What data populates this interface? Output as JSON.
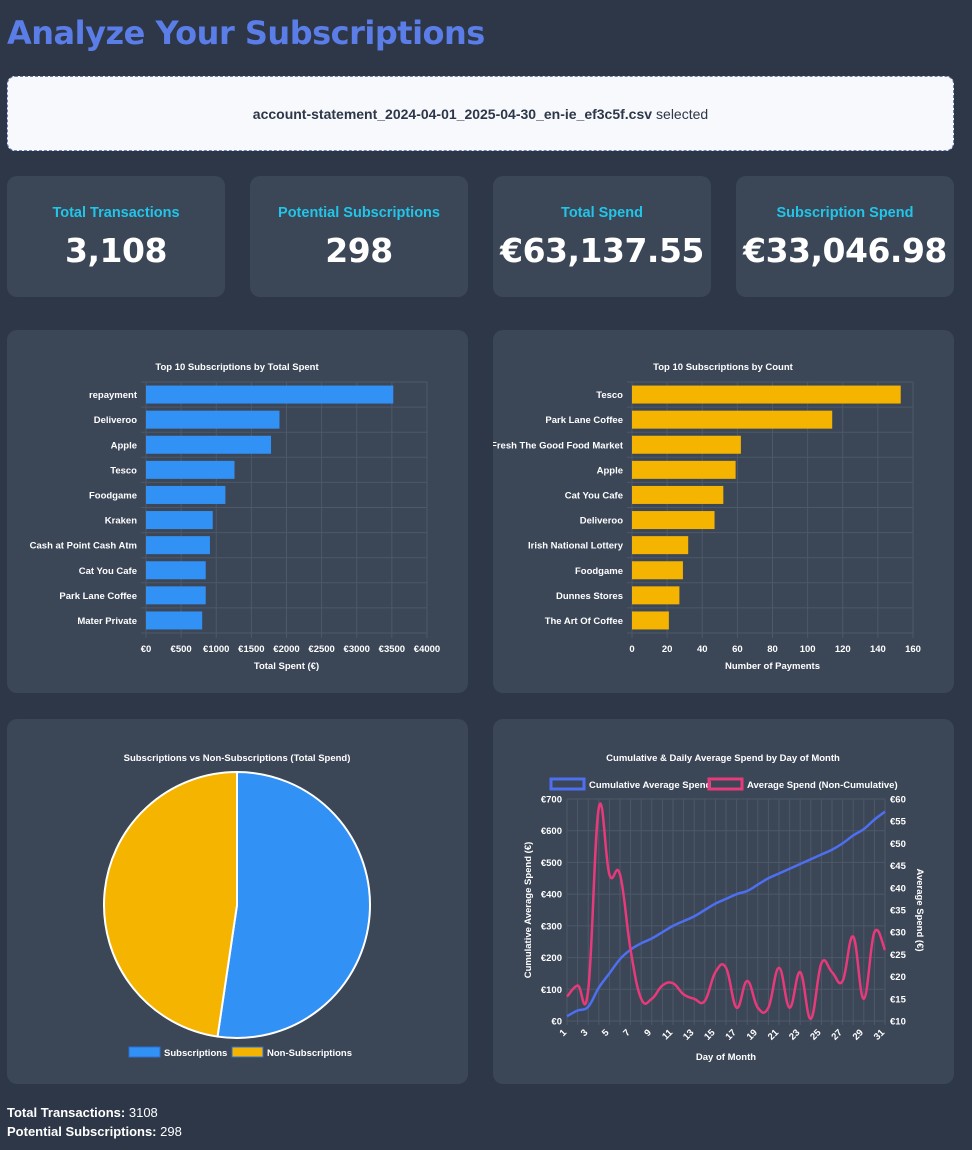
{
  "page_title": "Analyze Your Subscriptions",
  "file": {
    "name": "account-statement_2024-04-01_2025-04-30_en-ie_ef3c5f.csv",
    "status": "selected"
  },
  "stats": [
    {
      "label": "Total Transactions",
      "value": "3,108"
    },
    {
      "label": "Potential Subscriptions",
      "value": "298"
    },
    {
      "label": "Total Spend",
      "value": "€63,137.55"
    },
    {
      "label": "Subscription Spend",
      "value": "€33,046.98"
    }
  ],
  "colors": {
    "blue": "#3291f5",
    "yellow": "#f5b400",
    "pink": "#e83a7a",
    "line_blue": "#4d6ff0"
  },
  "chart_data": [
    {
      "type": "bar",
      "orientation": "horizontal",
      "title": "Top 10 Subscriptions by Total Spent",
      "categories": [
        "repayment",
        "Deliveroo",
        "Apple",
        "Tesco",
        "Foodgame",
        "Kraken",
        "Cash at Point Cash Atm",
        "Cat You Cafe",
        "Park Lane Coffee",
        "Mater Private"
      ],
      "values": [
        3520,
        1900,
        1780,
        1260,
        1130,
        950,
        910,
        850,
        850,
        800
      ],
      "xlabel": "Total Spent (€)",
      "xlim": [
        0,
        4000
      ],
      "ticks": [
        "€0",
        "€500",
        "€1000",
        "€1500",
        "€2000",
        "€2500",
        "€3000",
        "€3500",
        "€4000"
      ],
      "grid": true
    },
    {
      "type": "bar",
      "orientation": "horizontal",
      "title": "Top 10 Subscriptions by Count",
      "categories": [
        "Tesco",
        "Park Lane Coffee",
        "Fresh The Good Food Market",
        "Apple",
        "Cat You Cafe",
        "Deliveroo",
        "Irish National Lottery",
        "Foodgame",
        "Dunnes Stores",
        "The Art Of Coffee"
      ],
      "values": [
        153,
        114,
        62,
        59,
        52,
        47,
        32,
        29,
        27,
        21
      ],
      "xlabel": "Number of Payments",
      "xlim": [
        0,
        160
      ],
      "ticks": [
        "0",
        "20",
        "40",
        "60",
        "80",
        "100",
        "120",
        "140",
        "160"
      ],
      "grid": true
    },
    {
      "type": "pie",
      "title": "Subscriptions vs Non-Subscriptions (Total Spend)",
      "labels": [
        "Subscriptions",
        "Non-Subscriptions"
      ],
      "values": [
        33046.98,
        30090.57
      ],
      "legend": "bottom"
    },
    {
      "type": "line",
      "title": "Cumulative & Daily Average Spend by Day of Month",
      "xlabel": "Day of Month",
      "ylabel_left": "Cumulative Average Spend (€)",
      "ylabel_right": "Average Spend (€)",
      "x": [
        1,
        2,
        3,
        4,
        5,
        6,
        7,
        8,
        9,
        10,
        11,
        12,
        13,
        14,
        15,
        16,
        17,
        18,
        19,
        20,
        21,
        22,
        23,
        24,
        25,
        26,
        27,
        28,
        29,
        30,
        31
      ],
      "xticks": [
        "1",
        "3",
        "5",
        "7",
        "9",
        "11",
        "13",
        "15",
        "17",
        "19",
        "21",
        "23",
        "25",
        "27",
        "29",
        "31"
      ],
      "ylim_left": [
        0,
        700
      ],
      "yticks_left": [
        "€0",
        "€100",
        "€200",
        "€300",
        "€400",
        "€500",
        "€600",
        "€700"
      ],
      "ylim_right": [
        10,
        60
      ],
      "yticks_right": [
        "€10",
        "€15",
        "€20",
        "€25",
        "€30",
        "€35",
        "€40",
        "€45",
        "€50",
        "€55",
        "€60"
      ],
      "legend": "top",
      "series": [
        {
          "name": "Cumulative Average Spend",
          "axis": "left",
          "values": [
            15,
            33,
            45,
            105,
            150,
            195,
            225,
            245,
            260,
            280,
            300,
            315,
            330,
            350,
            370,
            385,
            400,
            410,
            430,
            450,
            465,
            480,
            495,
            510,
            525,
            540,
            560,
            585,
            605,
            635,
            660
          ]
        },
        {
          "name": "Average Spend (Non-Cumulative)",
          "axis": "right",
          "values": [
            15.5,
            18,
            17,
            58,
            43,
            43,
            26,
            15,
            15,
            18,
            18.5,
            16,
            15,
            14.5,
            21,
            22,
            13,
            19,
            13,
            13,
            22,
            13,
            21,
            10.5,
            23,
            21,
            19,
            29,
            15,
            30,
            26
          ]
        }
      ]
    }
  ],
  "summary": [
    {
      "label": "Total Transactions:",
      "value": "3108"
    },
    {
      "label": "Potential Subscriptions:",
      "value": "298"
    }
  ]
}
